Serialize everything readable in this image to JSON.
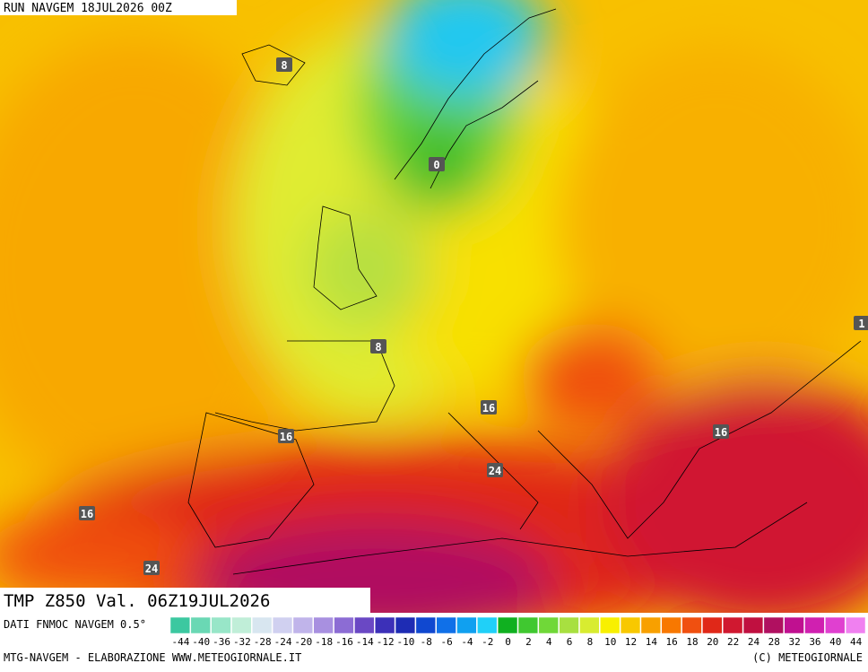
{
  "header": {
    "run": "RUN NAVGEM 18JUL2026 00Z"
  },
  "map": {
    "contour_labels": [
      8,
      0,
      8,
      16,
      16,
      16,
      24,
      16,
      24,
      1
    ]
  },
  "footer": {
    "title": "TMP Z850 Val. 06Z19JUL2026",
    "source": "DATI FNMOC NAVGEM 0.5°",
    "credits": "MTG-NAVGEM - ELABORAZIONE WWW.METEOGIORNALE.IT",
    "copyright": "(C) METEOGIORNALE"
  },
  "colorbar": {
    "labels": [
      -44,
      -40,
      -36,
      -32,
      -28,
      -24,
      -20,
      -18,
      -16,
      -14,
      -12,
      -10,
      -8,
      -6,
      -4,
      -2,
      0,
      2,
      4,
      6,
      8,
      10,
      12,
      14,
      16,
      18,
      20,
      22,
      24,
      28,
      32,
      36,
      40,
      44
    ],
    "colors": [
      "#3cc8a0",
      "#6ad8b4",
      "#98e6c8",
      "#c0eed8",
      "#d8e6f0",
      "#d0d0f0",
      "#c0b4ea",
      "#a890e0",
      "#8c6cd4",
      "#6a48c4",
      "#3c30b8",
      "#1e2cb4",
      "#1048d0",
      "#1070e8",
      "#10a0f0",
      "#20d0f8",
      "#10b020",
      "#40c830",
      "#70d838",
      "#a8e040",
      "#d8ec30",
      "#f8f000",
      "#f8c800",
      "#f8a000",
      "#f87800",
      "#f05010",
      "#e02818",
      "#d01830",
      "#c01040",
      "#b01060",
      "#c01090",
      "#d020b0",
      "#e040d0",
      "#f080f0"
    ]
  }
}
